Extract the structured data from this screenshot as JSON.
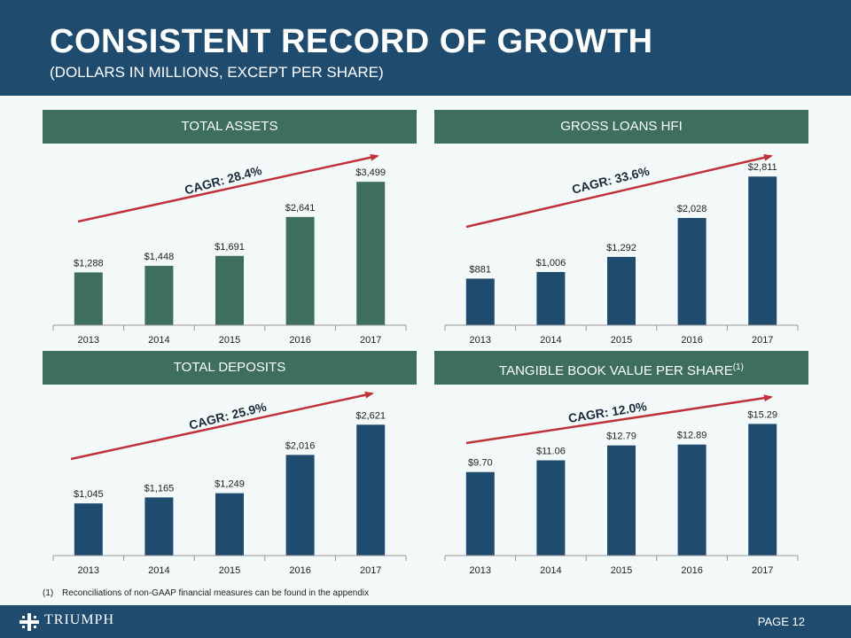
{
  "header": {
    "title": "CONSISTENT RECORD OF GROWTH",
    "subtitle": "(DOLLARS IN MILLIONS, EXCEPT PER SHARE)"
  },
  "colors": {
    "header_bg": "#1f4b6e",
    "green_head": "#3e6e5e",
    "green_bar": "#3e6e5e",
    "blue_bar": "#1f4b6e",
    "arrow": "#c0323a"
  },
  "chart_data": [
    {
      "type": "bar",
      "title": "TOTAL ASSETS",
      "categories": [
        "2013",
        "2014",
        "2015",
        "2016",
        "2017"
      ],
      "values": [
        1288,
        1448,
        1691,
        2641,
        3499
      ],
      "labels": [
        "$1,288",
        "$1,448",
        "$1,691",
        "$2,641",
        "$3,499"
      ],
      "annotation": "CAGR: 28.4%",
      "ylim": [
        0,
        4000
      ]
    },
    {
      "type": "bar",
      "title": "GROSS LOANS HFI",
      "categories": [
        "2013",
        "2014",
        "2015",
        "2016",
        "2017"
      ],
      "values": [
        881,
        1006,
        1292,
        2028,
        2811
      ],
      "labels": [
        "$881",
        "$1,006",
        "$1,292",
        "$2,028",
        "$2,811"
      ],
      "annotation": "CAGR: 33.6%",
      "ylim": [
        0,
        3100
      ]
    },
    {
      "type": "bar",
      "title": "TOTAL DEPOSITS",
      "categories": [
        "2013",
        "2014",
        "2015",
        "2016",
        "2017"
      ],
      "values": [
        1045,
        1165,
        1249,
        2016,
        2621
      ],
      "labels": [
        "$1,045",
        "$1,165",
        "$1,249",
        "$2,016",
        "$2,621"
      ],
      "annotation": "CAGR: 25.9%",
      "ylim": [
        0,
        3070
      ]
    },
    {
      "type": "bar",
      "title": "TANGIBLE BOOK VALUE PER SHARE",
      "title_sup": "(1)",
      "categories": [
        "2013",
        "2014",
        "2015",
        "2016",
        "2017"
      ],
      "values": [
        9.7,
        11.06,
        12.79,
        12.89,
        15.29
      ],
      "labels": [
        "$9.70",
        "$11.06",
        "$12.79",
        "$12.89",
        "$15.29"
      ],
      "annotation": "CAGR: 12.0%",
      "ylim": [
        0,
        17.8
      ]
    }
  ],
  "footnote": {
    "number": "(1)",
    "text": "Reconciliations of non-GAAP financial measures can be found in the appendix"
  },
  "footer": {
    "logo_text": "TRIUMPH",
    "page_label": "PAGE 12"
  }
}
